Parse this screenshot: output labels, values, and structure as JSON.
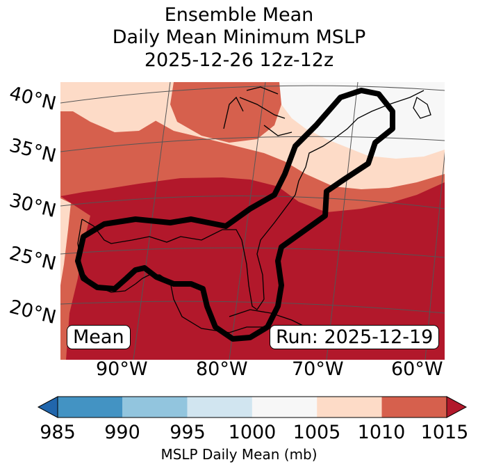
{
  "title": {
    "line1": "Ensemble Mean",
    "line2": "Daily Mean Minimum MSLP",
    "line3": "2025-12-26 12z-12z"
  },
  "map": {
    "lat_labels": [
      "40°N",
      "35°N",
      "30°N",
      "25°N",
      "20°N"
    ],
    "lon_labels": [
      "90°W",
      "80°W",
      "70°W",
      "60°W"
    ],
    "mean_label": "Mean",
    "run_label": "Run: 2025-12-19"
  },
  "colorbar": {
    "ticks": [
      "985",
      "990",
      "995",
      "1000",
      "1005",
      "1010",
      "1015"
    ],
    "label": "MSLP Daily Mean (mb)",
    "colors": [
      "#2166ac",
      "#4393c3",
      "#92c5de",
      "#d1e5f0",
      "#f7f7f7",
      "#fddbc7",
      "#d6604d",
      "#b2182b"
    ]
  }
}
